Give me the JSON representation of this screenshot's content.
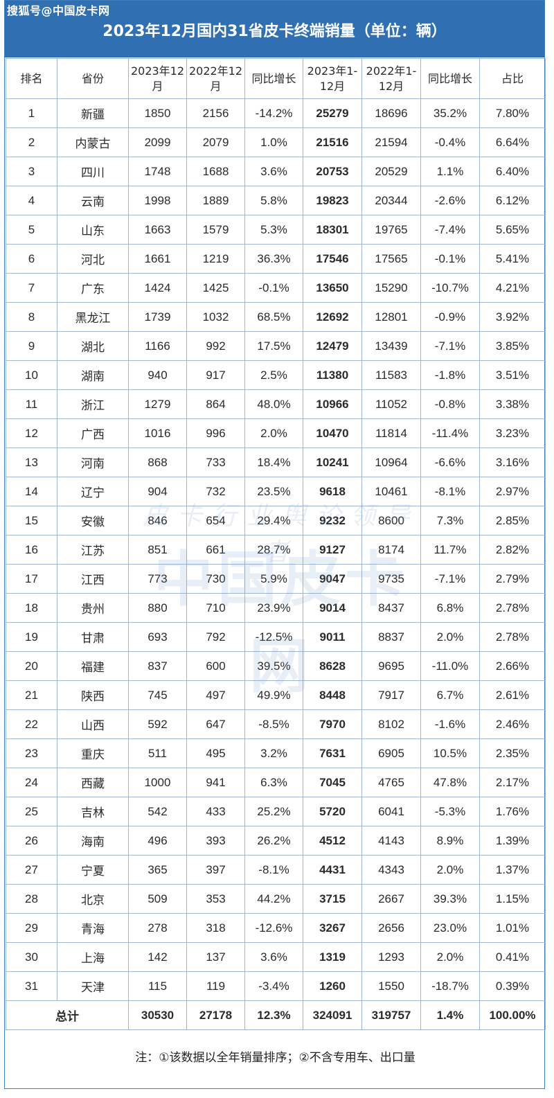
{
  "source": "搜狐号@中国皮卡网",
  "title": "2023年12月国内31省皮卡终端销量（单位：辆）",
  "watermark": {
    "line1": "皮卡行业舆论领导者",
    "line2": "中国皮卡网"
  },
  "headers": {
    "rank": "排名",
    "province": "省份",
    "m2023_l1": "2023年12",
    "m2023_l2": "月",
    "m2022_l1": "2022年12",
    "m2022_l2": "月",
    "yoy1": "同比增长",
    "y2023_l1": "2023年1-",
    "y2023_l2": "12月",
    "y2022_l1": "2022年1-",
    "y2022_l2": "12月",
    "yoy2": "同比增长",
    "share": "占比"
  },
  "rows": [
    {
      "rank": "1",
      "province": "新疆",
      "m2023": "1850",
      "m2022": "2156",
      "yoy1": "-14.2%",
      "y2023": "25279",
      "y2022": "18696",
      "yoy2": "35.2%",
      "share": "7.80%"
    },
    {
      "rank": "2",
      "province": "内蒙古",
      "m2023": "2099",
      "m2022": "2079",
      "yoy1": "1.0%",
      "y2023": "21516",
      "y2022": "21594",
      "yoy2": "-0.4%",
      "share": "6.64%"
    },
    {
      "rank": "3",
      "province": "四川",
      "m2023": "1748",
      "m2022": "1688",
      "yoy1": "3.6%",
      "y2023": "20753",
      "y2022": "20529",
      "yoy2": "1.1%",
      "share": "6.40%"
    },
    {
      "rank": "4",
      "province": "云南",
      "m2023": "1998",
      "m2022": "1889",
      "yoy1": "5.8%",
      "y2023": "19823",
      "y2022": "20344",
      "yoy2": "-2.6%",
      "share": "6.12%"
    },
    {
      "rank": "5",
      "province": "山东",
      "m2023": "1663",
      "m2022": "1579",
      "yoy1": "5.3%",
      "y2023": "18301",
      "y2022": "19765",
      "yoy2": "-7.4%",
      "share": "5.65%"
    },
    {
      "rank": "6",
      "province": "河北",
      "m2023": "1661",
      "m2022": "1219",
      "yoy1": "36.3%",
      "y2023": "17546",
      "y2022": "17565",
      "yoy2": "-0.1%",
      "share": "5.41%"
    },
    {
      "rank": "7",
      "province": "广东",
      "m2023": "1424",
      "m2022": "1425",
      "yoy1": "-0.1%",
      "y2023": "13650",
      "y2022": "15290",
      "yoy2": "-10.7%",
      "share": "4.21%"
    },
    {
      "rank": "8",
      "province": "黑龙江",
      "m2023": "1739",
      "m2022": "1032",
      "yoy1": "68.5%",
      "y2023": "12692",
      "y2022": "12801",
      "yoy2": "-0.9%",
      "share": "3.92%"
    },
    {
      "rank": "9",
      "province": "湖北",
      "m2023": "1166",
      "m2022": "992",
      "yoy1": "17.5%",
      "y2023": "12479",
      "y2022": "13439",
      "yoy2": "-7.1%",
      "share": "3.85%"
    },
    {
      "rank": "10",
      "province": "湖南",
      "m2023": "940",
      "m2022": "917",
      "yoy1": "2.5%",
      "y2023": "11380",
      "y2022": "11583",
      "yoy2": "-1.8%",
      "share": "3.51%"
    },
    {
      "rank": "11",
      "province": "浙江",
      "m2023": "1279",
      "m2022": "864",
      "yoy1": "48.0%",
      "y2023": "10966",
      "y2022": "11052",
      "yoy2": "-0.8%",
      "share": "3.38%"
    },
    {
      "rank": "12",
      "province": "广西",
      "m2023": "1016",
      "m2022": "996",
      "yoy1": "2.0%",
      "y2023": "10470",
      "y2022": "11814",
      "yoy2": "-11.4%",
      "share": "3.23%"
    },
    {
      "rank": "13",
      "province": "河南",
      "m2023": "868",
      "m2022": "733",
      "yoy1": "18.4%",
      "y2023": "10241",
      "y2022": "10964",
      "yoy2": "-6.6%",
      "share": "3.16%"
    },
    {
      "rank": "14",
      "province": "辽宁",
      "m2023": "904",
      "m2022": "732",
      "yoy1": "23.5%",
      "y2023": "9618",
      "y2022": "10461",
      "yoy2": "-8.1%",
      "share": "2.97%"
    },
    {
      "rank": "15",
      "province": "安徽",
      "m2023": "846",
      "m2022": "654",
      "yoy1": "29.4%",
      "y2023": "9232",
      "y2022": "8600",
      "yoy2": "7.3%",
      "share": "2.85%"
    },
    {
      "rank": "16",
      "province": "江苏",
      "m2023": "851",
      "m2022": "661",
      "yoy1": "28.7%",
      "y2023": "9127",
      "y2022": "8174",
      "yoy2": "11.7%",
      "share": "2.82%"
    },
    {
      "rank": "17",
      "province": "江西",
      "m2023": "773",
      "m2022": "730",
      "yoy1": "5.9%",
      "y2023": "9047",
      "y2022": "9735",
      "yoy2": "-7.1%",
      "share": "2.79%"
    },
    {
      "rank": "18",
      "province": "贵州",
      "m2023": "880",
      "m2022": "710",
      "yoy1": "23.9%",
      "y2023": "9014",
      "y2022": "8437",
      "yoy2": "6.8%",
      "share": "2.78%"
    },
    {
      "rank": "19",
      "province": "甘肃",
      "m2023": "693",
      "m2022": "792",
      "yoy1": "-12.5%",
      "y2023": "9011",
      "y2022": "8837",
      "yoy2": "2.0%",
      "share": "2.78%"
    },
    {
      "rank": "20",
      "province": "福建",
      "m2023": "837",
      "m2022": "600",
      "yoy1": "39.5%",
      "y2023": "8628",
      "y2022": "9695",
      "yoy2": "-11.0%",
      "share": "2.66%"
    },
    {
      "rank": "21",
      "province": "陕西",
      "m2023": "745",
      "m2022": "497",
      "yoy1": "49.9%",
      "y2023": "8448",
      "y2022": "7917",
      "yoy2": "6.7%",
      "share": "2.61%"
    },
    {
      "rank": "22",
      "province": "山西",
      "m2023": "592",
      "m2022": "647",
      "yoy1": "-8.5%",
      "y2023": "7970",
      "y2022": "8102",
      "yoy2": "-1.6%",
      "share": "2.46%"
    },
    {
      "rank": "23",
      "province": "重庆",
      "m2023": "511",
      "m2022": "495",
      "yoy1": "3.2%",
      "y2023": "7631",
      "y2022": "6905",
      "yoy2": "10.5%",
      "share": "2.35%"
    },
    {
      "rank": "24",
      "province": "西藏",
      "m2023": "1000",
      "m2022": "941",
      "yoy1": "6.3%",
      "y2023": "7045",
      "y2022": "4765",
      "yoy2": "47.8%",
      "share": "2.17%"
    },
    {
      "rank": "25",
      "province": "吉林",
      "m2023": "542",
      "m2022": "433",
      "yoy1": "25.2%",
      "y2023": "5720",
      "y2022": "6041",
      "yoy2": "-5.3%",
      "share": "1.76%"
    },
    {
      "rank": "26",
      "province": "海南",
      "m2023": "496",
      "m2022": "393",
      "yoy1": "26.2%",
      "y2023": "4512",
      "y2022": "4143",
      "yoy2": "8.9%",
      "share": "1.39%"
    },
    {
      "rank": "27",
      "province": "宁夏",
      "m2023": "365",
      "m2022": "397",
      "yoy1": "-8.1%",
      "y2023": "4431",
      "y2022": "4343",
      "yoy2": "2.0%",
      "share": "1.37%"
    },
    {
      "rank": "28",
      "province": "北京",
      "m2023": "509",
      "m2022": "353",
      "yoy1": "44.2%",
      "y2023": "3715",
      "y2022": "2667",
      "yoy2": "39.3%",
      "share": "1.15%"
    },
    {
      "rank": "29",
      "province": "青海",
      "m2023": "278",
      "m2022": "318",
      "yoy1": "-12.6%",
      "y2023": "3267",
      "y2022": "2656",
      "yoy2": "23.0%",
      "share": "1.01%"
    },
    {
      "rank": "30",
      "province": "上海",
      "m2023": "142",
      "m2022": "137",
      "yoy1": "3.6%",
      "y2023": "1319",
      "y2022": "1293",
      "yoy2": "2.0%",
      "share": "0.41%"
    },
    {
      "rank": "31",
      "province": "天津",
      "m2023": "115",
      "m2022": "119",
      "yoy1": "-3.4%",
      "y2023": "1260",
      "y2022": "1550",
      "yoy2": "-18.7%",
      "share": "0.39%"
    }
  ],
  "total": {
    "label": "总计",
    "m2023": "30530",
    "m2022": "27178",
    "yoy1": "12.3%",
    "y2023": "324091",
    "y2022": "319757",
    "yoy2": "1.4%",
    "share": "100.00%"
  },
  "note": "注：①该数据以全年销量排序；②不含专用车、出口量",
  "colors": {
    "header_bg": "#2f6fb2",
    "positive": "#e1171e",
    "negative": "#3e8a2a",
    "border": "#9fb6cf"
  }
}
